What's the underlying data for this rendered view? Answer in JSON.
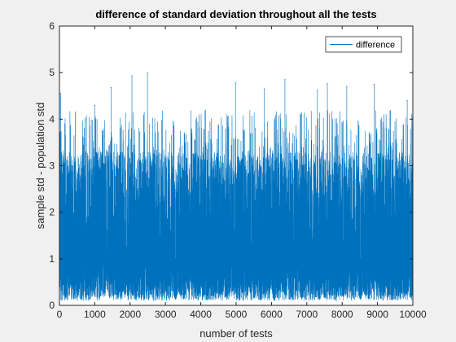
{
  "chart_data": {
    "type": "line",
    "title": "difference of standard deviation throughout all the tests",
    "xlabel": "number of tests",
    "ylabel": "sample std - population std",
    "xlim": [
      0,
      10000
    ],
    "ylim": [
      0,
      6
    ],
    "x_ticks": [
      "0",
      "1000",
      "2000",
      "3000",
      "4000",
      "5000",
      "6000",
      "7000",
      "8000",
      "9000",
      "10000"
    ],
    "y_ticks": [
      "0",
      "1",
      "2",
      "3",
      "4",
      "5",
      "6"
    ],
    "grid": false,
    "legend": {
      "position": "top-right"
    },
    "series": [
      {
        "name": "difference",
        "color": "#0072bd",
        "n_points": 10000,
        "typical_range": [
          0.1,
          3.3
        ],
        "peaks": [
          {
            "x": 30,
            "y": 4.55
          },
          {
            "x": 1000,
            "y": 4.3
          },
          {
            "x": 1460,
            "y": 4.68
          },
          {
            "x": 2050,
            "y": 4.93
          },
          {
            "x": 2490,
            "y": 5.0
          },
          {
            "x": 4980,
            "y": 4.78
          },
          {
            "x": 5800,
            "y": 4.65
          },
          {
            "x": 6380,
            "y": 4.85
          },
          {
            "x": 7300,
            "y": 4.62
          },
          {
            "x": 7580,
            "y": 4.76
          },
          {
            "x": 8130,
            "y": 4.7
          },
          {
            "x": 8900,
            "y": 4.75
          },
          {
            "x": 9840,
            "y": 4.4
          }
        ]
      }
    ]
  }
}
